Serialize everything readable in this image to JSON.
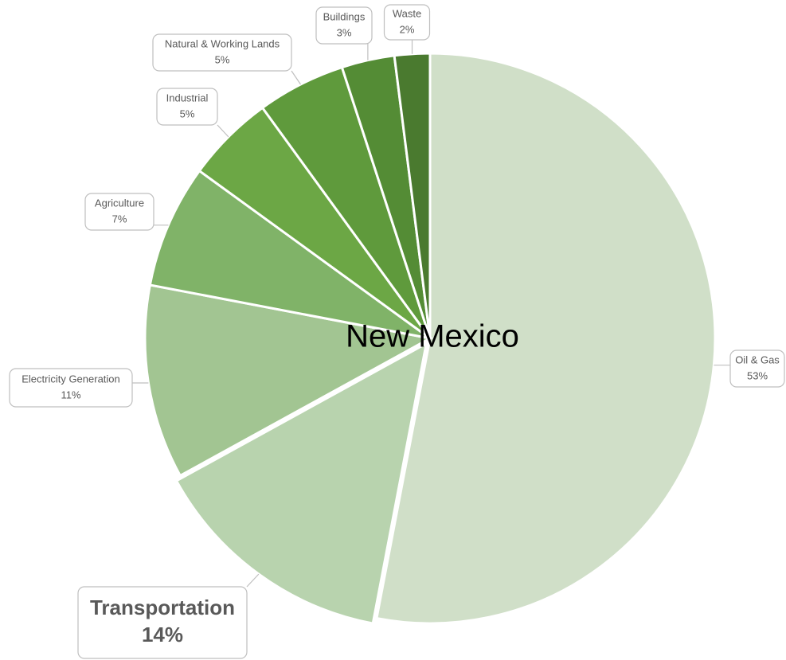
{
  "chart_data": {
    "type": "pie",
    "title": "New Mexico",
    "categories": [
      "Oil & Gas",
      "Transportation",
      "Electricity Generation",
      "Agriculture",
      "Industrial",
      "Natural & Working Lands",
      "Buildings",
      "Waste"
    ],
    "values": [
      53,
      14,
      11,
      7,
      5,
      5,
      3,
      2
    ],
    "value_labels": [
      "53%",
      "14%",
      "11%",
      "7%",
      "5%",
      "5%",
      "3%",
      "2%"
    ],
    "colors": [
      "#d0dfc8",
      "#b8d3ae",
      "#a2c592",
      "#80b368",
      "#6ca745",
      "#5f9a3c",
      "#548c35",
      "#4a7a2f"
    ]
  }
}
